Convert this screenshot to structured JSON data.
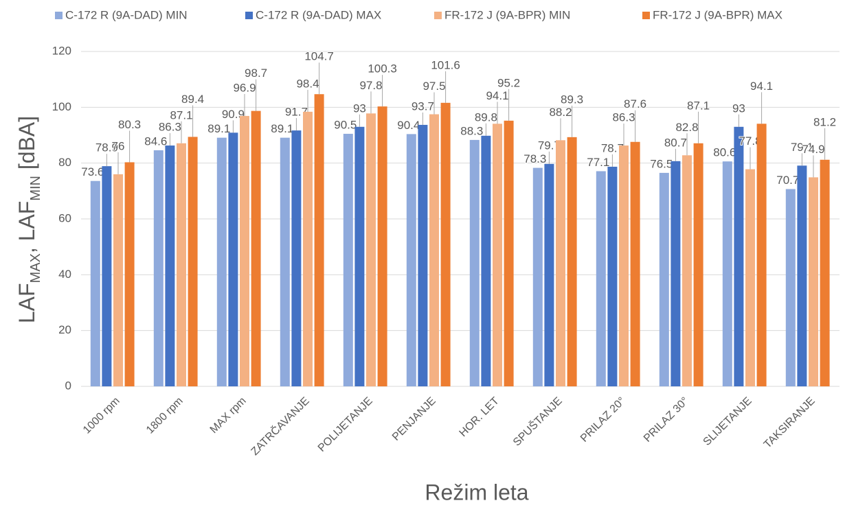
{
  "chart_data": {
    "type": "bar",
    "ylabel": [
      "LAF",
      "MAX",
      ", LAF",
      "MIN",
      " [dBA]"
    ],
    "xlabel": "Režim leta",
    "categories": [
      "1000 rpm",
      "1800 rpm",
      "MAX rpm",
      "ZATRČAVANJE",
      "POLIJETANJE",
      "PENJANJE",
      "HOR. LET",
      "SPUŠTANJE",
      "PRILAZ 20°",
      "PRILAZ 30°",
      "SLIJETANJE",
      "TAKSIRANJE"
    ],
    "series": [
      {
        "name": "C-172 R (9A-DAD) MIN",
        "color": "#8faadc",
        "values": [
          73.6,
          84.6,
          89.1,
          89.1,
          90.5,
          90.4,
          88.3,
          78.3,
          77.1,
          76.5,
          80.6,
          70.7
        ]
      },
      {
        "name": "C-172 R (9A-DAD) MAX",
        "color": "#4472c4",
        "values": [
          78.9,
          86.3,
          90.9,
          91.7,
          93,
          93.7,
          89.8,
          79.7,
          78.7,
          80.7,
          93,
          79.1
        ]
      },
      {
        "name": "FR-172 J (9A-BPR) MIN",
        "color": "#f4b183",
        "values": [
          76,
          87.1,
          96.9,
          98.4,
          97.8,
          97.5,
          94.1,
          88.2,
          86.3,
          82.8,
          77.8,
          74.9
        ]
      },
      {
        "name": "FR-172 J (9A-BPR) MAX",
        "color": "#ed7d31",
        "values": [
          80.3,
          89.4,
          98.7,
          104.7,
          100.3,
          101.6,
          95.2,
          89.3,
          87.6,
          87.1,
          94.1,
          81.2
        ]
      }
    ],
    "ylim": [
      0,
      120
    ],
    "yticks": [
      0,
      20,
      40,
      60,
      80,
      100,
      120
    ],
    "grid": true,
    "legend": "top"
  }
}
